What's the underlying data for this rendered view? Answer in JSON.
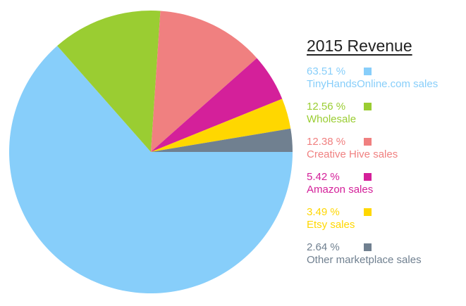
{
  "chart_data": {
    "type": "pie",
    "title": "2015 Revenue",
    "series": [
      {
        "name": "TinyHandsOnline.com sales",
        "value": 63.51,
        "label": "63.51 %",
        "color": "#87CEFA"
      },
      {
        "name": "Wholesale",
        "value": 12.56,
        "label": "12.56 %",
        "color": "#9ACD32"
      },
      {
        "name": "Creative Hive sales",
        "value": 12.38,
        "label": "12.38 %",
        "color": "#F08080"
      },
      {
        "name": "Amazon sales",
        "value": 5.42,
        "label": "5.42 %",
        "color": "#D4209A"
      },
      {
        "name": "Etsy sales",
        "value": 3.49,
        "label": "3.49 %",
        "color": "#FFD700"
      },
      {
        "name": "Other marketplace sales",
        "value": 2.64,
        "label": "2.64 %",
        "color": "#708090"
      }
    ],
    "legend_position": "right"
  }
}
